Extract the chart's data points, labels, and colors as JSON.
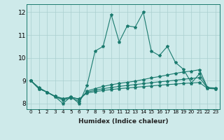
{
  "xlabel": "Humidex (Indice chaleur)",
  "bg_color": "#ceeaea",
  "line_color": "#1a7a6e",
  "grid_color": "#aacfcf",
  "xlim": [
    -0.5,
    23.5
  ],
  "ylim": [
    7.75,
    12.35
  ],
  "xticks": [
    0,
    1,
    2,
    3,
    4,
    5,
    6,
    7,
    8,
    9,
    10,
    11,
    12,
    13,
    14,
    15,
    16,
    17,
    18,
    19,
    20,
    21,
    22,
    23
  ],
  "yticks": [
    8,
    9,
    10,
    11,
    12
  ],
  "lines": [
    [
      9.0,
      8.7,
      8.5,
      8.3,
      8.0,
      8.3,
      8.0,
      8.8,
      10.3,
      10.5,
      11.9,
      10.7,
      11.4,
      11.35,
      12.0,
      10.3,
      10.1,
      10.5,
      9.8,
      9.5,
      8.9,
      9.3,
      8.7,
      8.65
    ],
    [
      9.0,
      8.65,
      8.5,
      8.3,
      8.15,
      8.25,
      8.1,
      8.55,
      8.65,
      8.75,
      8.82,
      8.88,
      8.93,
      8.98,
      9.05,
      9.12,
      9.18,
      9.25,
      9.32,
      9.38,
      9.42,
      9.48,
      8.7,
      8.68
    ],
    [
      9.0,
      8.65,
      8.5,
      8.32,
      8.2,
      8.28,
      8.18,
      8.5,
      8.58,
      8.65,
      8.7,
      8.75,
      8.79,
      8.83,
      8.87,
      8.91,
      8.95,
      8.98,
      9.02,
      9.06,
      9.1,
      9.13,
      8.68,
      8.66
    ],
    [
      9.0,
      8.65,
      8.5,
      8.32,
      8.22,
      8.28,
      8.2,
      8.46,
      8.52,
      8.57,
      8.61,
      8.65,
      8.68,
      8.71,
      8.74,
      8.77,
      8.8,
      8.83,
      8.85,
      8.88,
      8.9,
      8.92,
      8.66,
      8.64
    ]
  ]
}
